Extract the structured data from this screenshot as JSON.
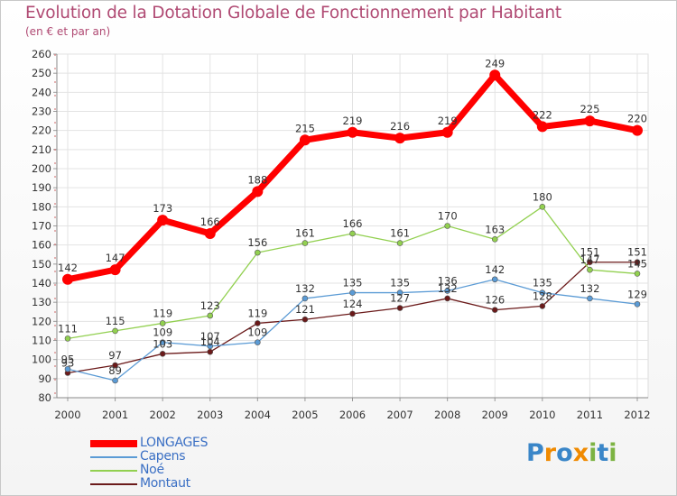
{
  "header": {
    "title": "Evolution de la Dotation Globale de Fonctionnement par Habitant",
    "subtitle": "(en € et par an)"
  },
  "chart_data": {
    "type": "line",
    "title": "Evolution de la Dotation Globale de Fonctionnement par Habitant",
    "subtitle": "(en € et par an)",
    "xlabel": "",
    "ylabel": "",
    "ylim": [
      80,
      260
    ],
    "ytick_step": 10,
    "grid": true,
    "legend_position": "bottom-left",
    "x": [
      "2000",
      "2001",
      "2002",
      "2003",
      "2004",
      "2005",
      "2006",
      "2007",
      "2008",
      "2009",
      "2010",
      "2011",
      "2012"
    ],
    "series": [
      {
        "name": "LONGAGES",
        "color": "#ff0000",
        "values": [
          142,
          147,
          173,
          166,
          188,
          215,
          219,
          216,
          219,
          249,
          222,
          225,
          220
        ]
      },
      {
        "name": "Capens",
        "color": "#5b9bd5",
        "values": [
          95,
          89,
          109,
          107,
          109,
          132,
          135,
          135,
          136,
          142,
          135,
          132,
          129
        ]
      },
      {
        "name": "Noé",
        "color": "#92d050",
        "values": [
          111,
          115,
          119,
          123,
          156,
          161,
          166,
          161,
          170,
          163,
          180,
          147,
          145
        ]
      },
      {
        "name": "Montaut",
        "color": "#6b1a1a",
        "values": [
          93,
          97,
          103,
          104,
          119,
          121,
          124,
          127,
          132,
          126,
          128,
          151,
          151
        ]
      }
    ]
  },
  "branding": {
    "logo_letters": [
      "P",
      "r",
      "o",
      "x",
      "i",
      "t",
      "i"
    ],
    "logo_colors": [
      "#3a86c8",
      "#f08a00",
      "#3a86c8",
      "#f08a00",
      "#7cb342",
      "#3a86c8",
      "#7cb342"
    ]
  }
}
